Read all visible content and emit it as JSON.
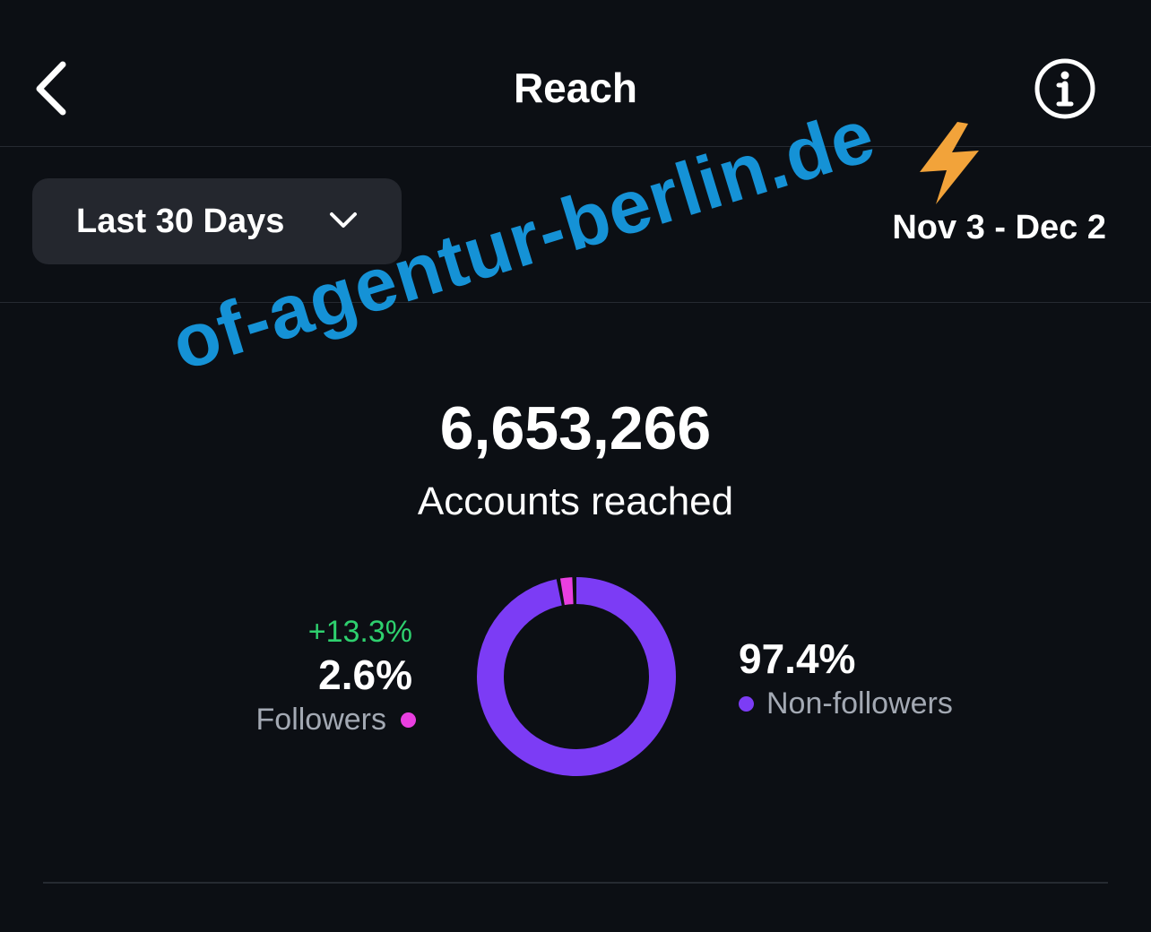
{
  "header": {
    "title": "Reach",
    "back_icon": "chevron-left-icon",
    "info_icon": "info-icon"
  },
  "filters": {
    "range_label": "Last 30 Days",
    "range_icon": "chevron-down-icon",
    "date_range": "Nov 3 - Dec 2"
  },
  "metric": {
    "value": "6,653,266",
    "label": "Accounts reached"
  },
  "breakdown": {
    "followers": {
      "change": "+13.3%",
      "percent": "2.6%",
      "label": "Followers",
      "color": "#e93fe0"
    },
    "non_followers": {
      "percent": "97.4%",
      "label": "Non-followers",
      "color": "#7c3cf5"
    }
  },
  "chart_data": {
    "type": "pie",
    "categories": [
      "Followers",
      "Non-followers"
    ],
    "values": [
      2.6,
      97.4
    ],
    "colors": [
      "#e93fe0",
      "#7c3cf5"
    ]
  },
  "watermark": {
    "text": "of-agentur-berlin.de",
    "icon": "lightning-bolt-icon",
    "color": "#1592d6"
  },
  "theme": {
    "background": "#0c0f14",
    "card": "#24272e",
    "positive": "#2ed06e"
  }
}
